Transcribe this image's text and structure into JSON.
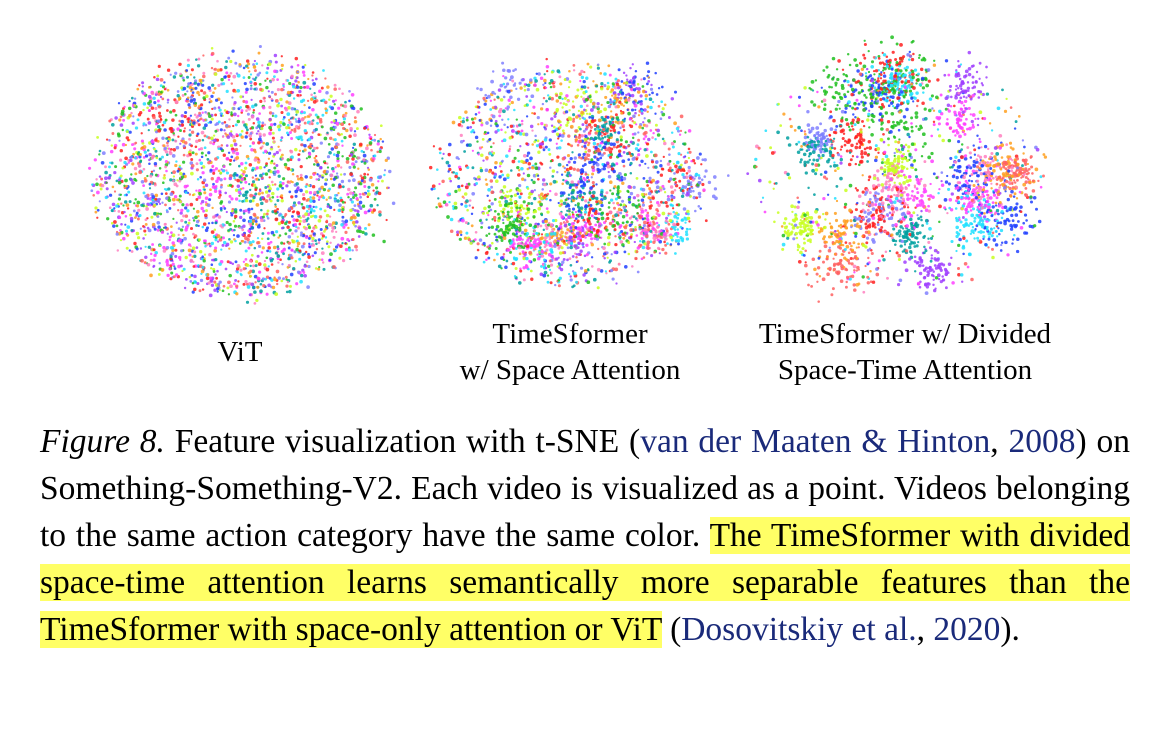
{
  "figure": {
    "panels": [
      {
        "id": "vit",
        "label_lines": [
          "ViT"
        ],
        "cluster_strength": 0.15,
        "spread": 1.0
      },
      {
        "id": "space",
        "label_lines": [
          "TimeSformer",
          "w/ Space Attention"
        ],
        "cluster_strength": 0.45,
        "spread": 0.9
      },
      {
        "id": "divided",
        "label_lines": [
          "TimeSformer w/ Divided",
          "Space-Time Attention"
        ],
        "cluster_strength": 0.85,
        "spread": 1.0
      }
    ],
    "palette": [
      "#ff2020",
      "#ff40ff",
      "#2040ff",
      "#20c020",
      "#20e0ff",
      "#ffa020",
      "#a040ff",
      "#c8ff20",
      "#ff80c0",
      "#00a0a0",
      "#8080ff",
      "#ff6060"
    ]
  },
  "caption": {
    "fig_label": "Figure 8.",
    "text_1": " Feature visualization with t-SNE (",
    "cite_1": "van der Maaten & Hinton",
    "text_2": ", ",
    "cite_1_year": "2008",
    "text_3": ") on Something-Something-V2. Each video is visualized as a point. Videos belonging to the same action category have the same color. ",
    "highlight": "The TimeSformer with divided space-time attention learns semantically more separable features than the TimeSformer with space-only attention or ViT",
    "text_4": " (",
    "cite_2": "Dosovitskiy et al.",
    "text_5": ", ",
    "cite_2_year": "2020",
    "text_6": ")."
  }
}
